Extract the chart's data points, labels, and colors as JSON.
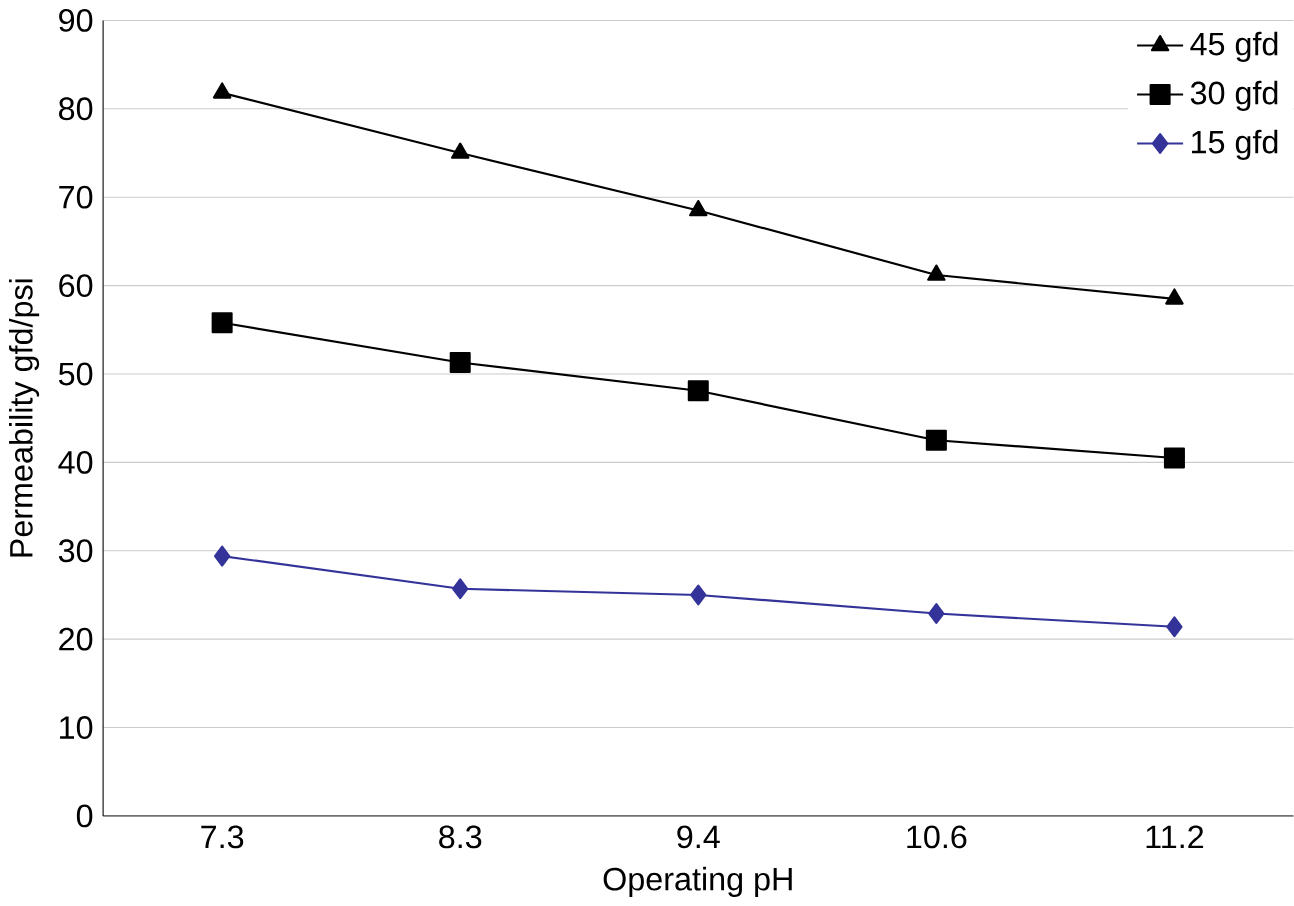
{
  "chart_data": {
    "type": "line",
    "xlabel": "Operating pH",
    "ylabel": "Permeability gfd/psi",
    "categories": [
      "7.3",
      "8.3",
      "9.4",
      "10.6",
      "11.2"
    ],
    "series": [
      {
        "name": "45 gfd",
        "color": "#000000",
        "marker": "triangle",
        "values": [
          81.8,
          75.0,
          68.5,
          61.2,
          58.5
        ]
      },
      {
        "name": "30 gfd",
        "color": "#000000",
        "marker": "square",
        "values": [
          55.8,
          51.3,
          48.1,
          42.5,
          40.5
        ]
      },
      {
        "name": "15 gfd",
        "color": "#333399",
        "marker": "diamond",
        "values": [
          29.4,
          25.7,
          25.0,
          22.9,
          21.4
        ]
      }
    ],
    "ylim": [
      0,
      90
    ],
    "yticks": [
      0,
      10,
      20,
      30,
      40,
      50,
      60,
      70,
      80,
      90
    ],
    "grid": "y",
    "legend": "top right",
    "line_style": "solid"
  }
}
